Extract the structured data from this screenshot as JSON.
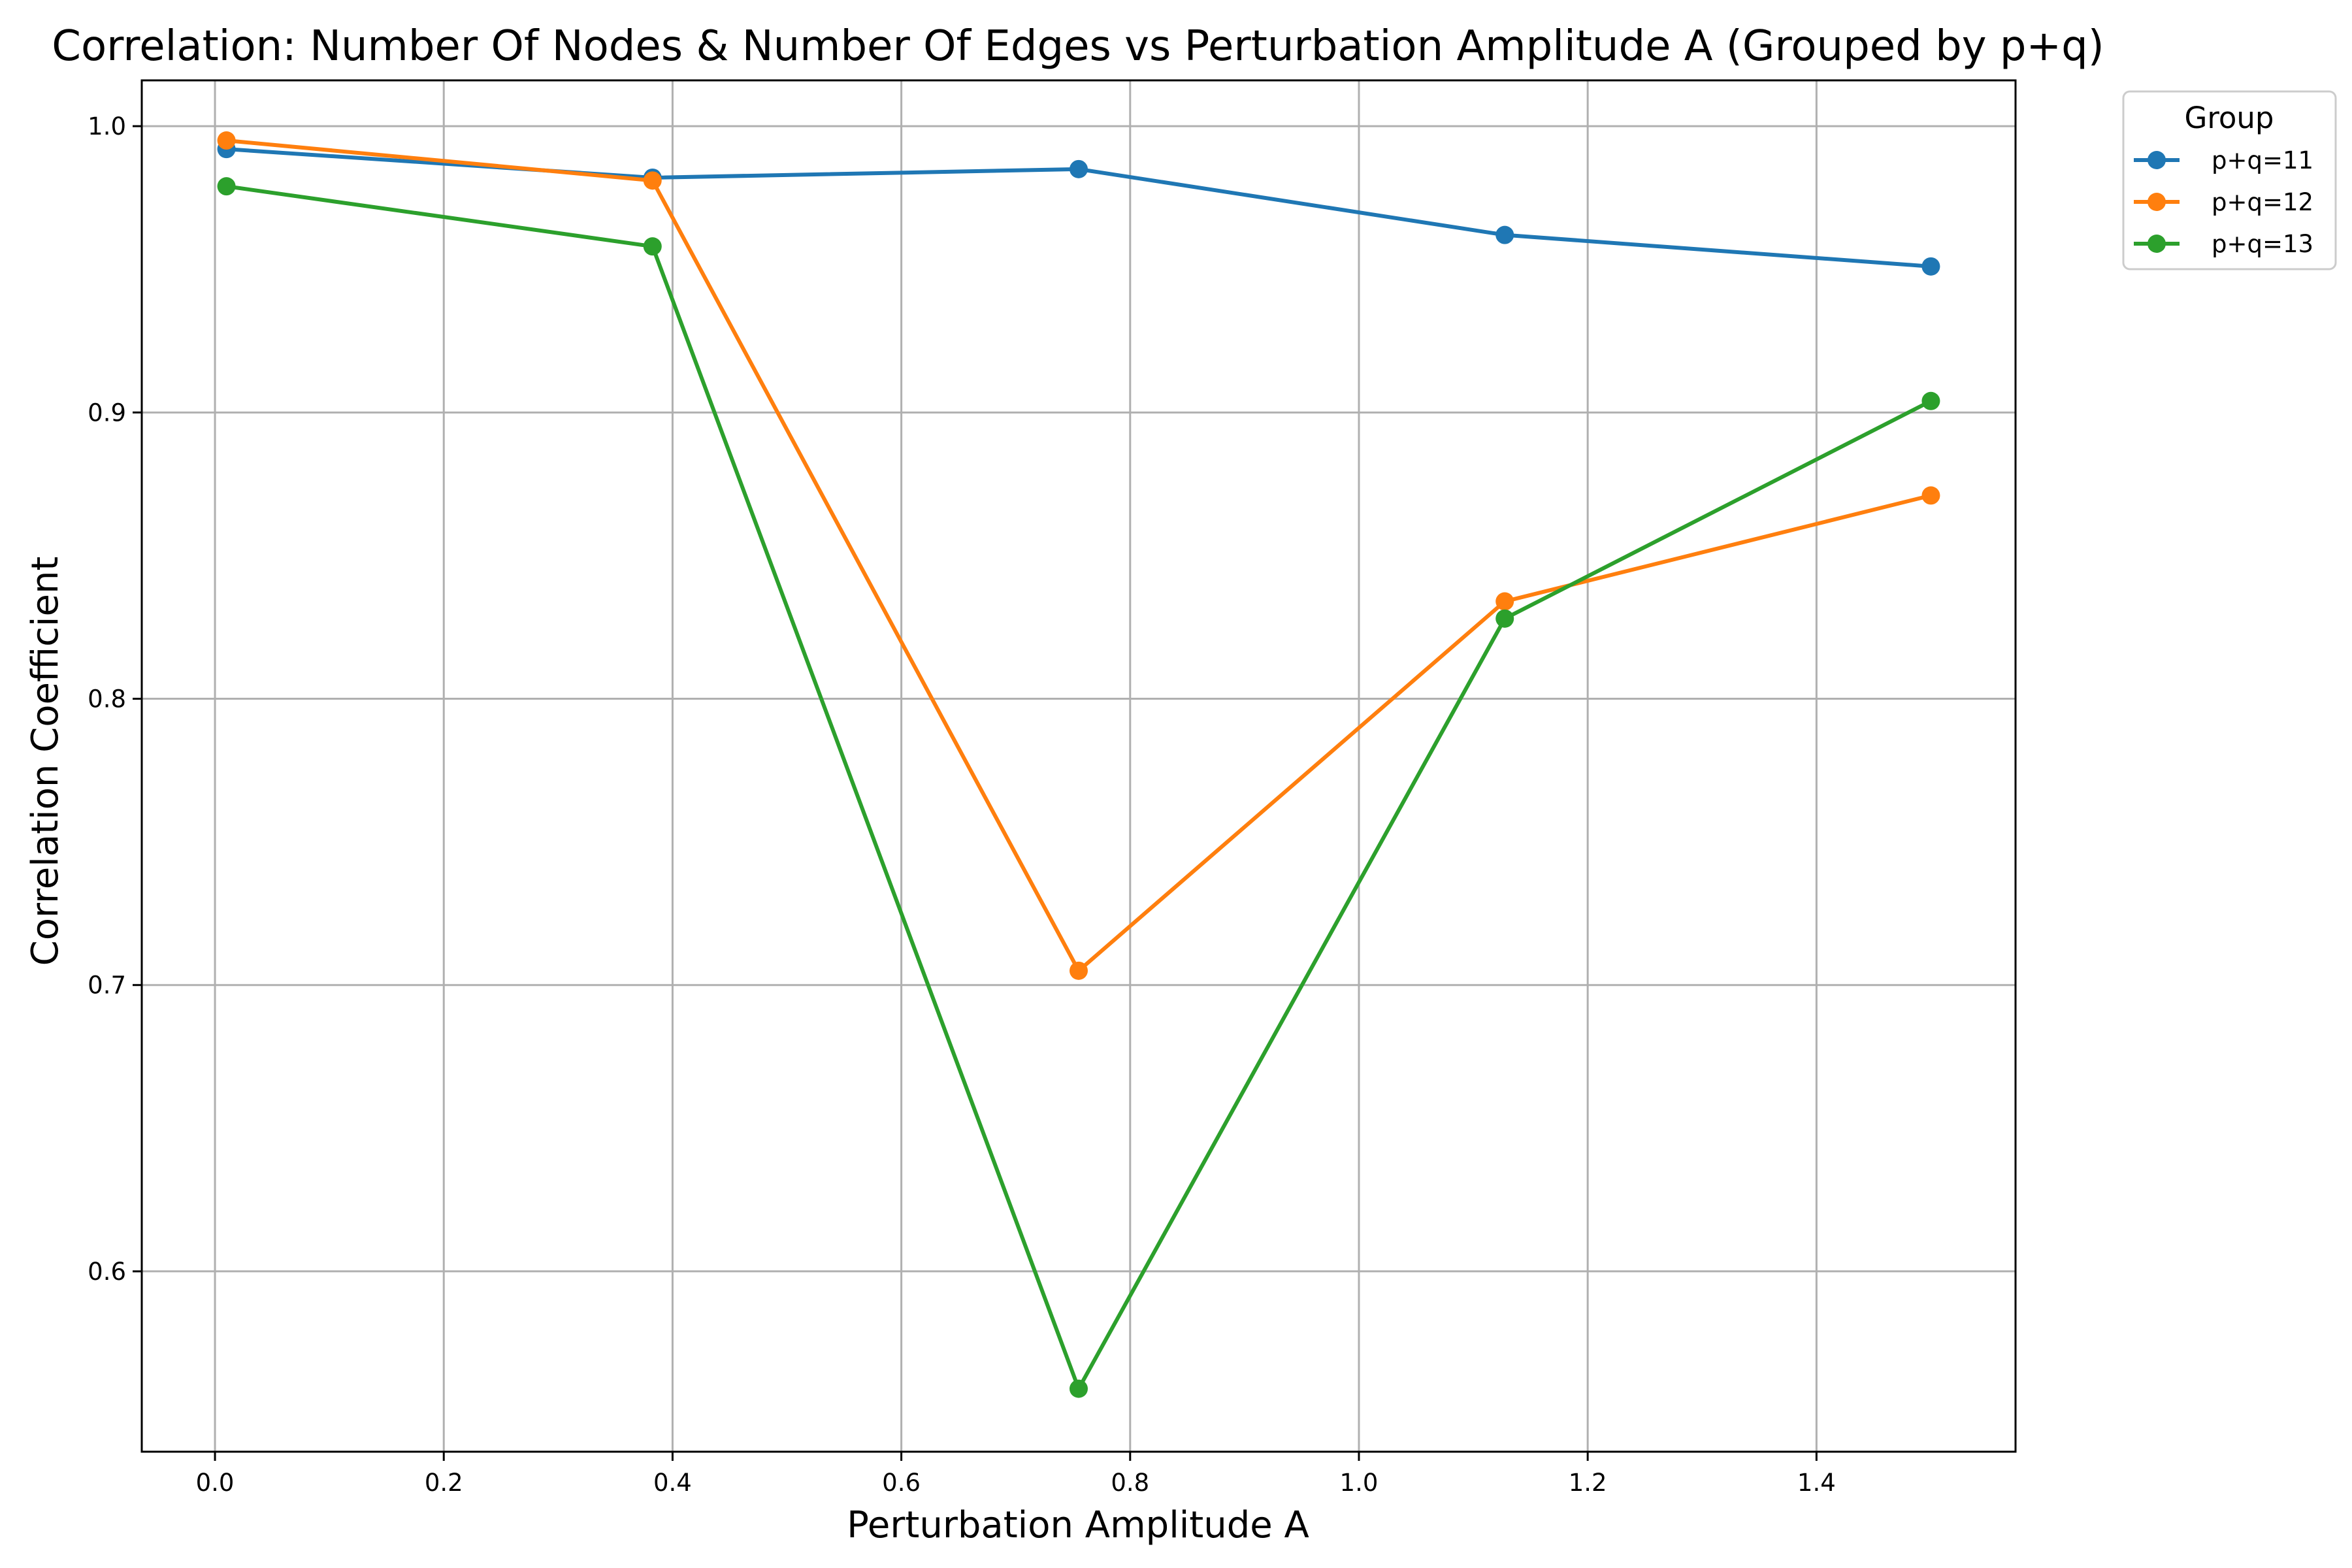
{
  "chart_data": {
    "type": "line",
    "title": "Correlation: Number Of Nodes & Number Of Edges vs Perturbation Amplitude A (Grouped by p+q)",
    "xlabel": "Perturbation Amplitude A",
    "ylabel": "Correlation Coefficient",
    "xlim": [
      -0.064,
      1.574
    ],
    "ylim": [
      0.537,
      1.016
    ],
    "xticks": [
      0.0,
      0.2,
      0.4,
      0.6,
      0.8,
      1.0,
      1.2,
      1.4
    ],
    "xtick_labels": [
      "0.0",
      "0.2",
      "0.4",
      "0.6",
      "0.8",
      "1.0",
      "1.2",
      "1.4"
    ],
    "yticks": [
      0.6,
      0.7,
      0.8,
      0.9,
      1.0
    ],
    "ytick_labels": [
      "0.6",
      "0.7",
      "0.8",
      "0.9",
      "1.0"
    ],
    "grid": true,
    "legend": {
      "title": "Group",
      "position": "outside-top-right"
    },
    "x": [
      0.01,
      0.3825,
      0.755,
      1.1275,
      1.5
    ],
    "series": [
      {
        "name": "p+q=11",
        "color": "#1f77b4",
        "marker": "circle",
        "values": [
          0.992,
          0.982,
          0.985,
          0.962,
          0.951
        ]
      },
      {
        "name": "p+q=12",
        "color": "#ff7f0e",
        "marker": "circle",
        "values": [
          0.995,
          0.981,
          0.705,
          0.834,
          0.871
        ]
      },
      {
        "name": "p+q=13",
        "color": "#2ca02c",
        "marker": "circle",
        "values": [
          0.979,
          0.958,
          0.559,
          0.828,
          0.904
        ]
      }
    ]
  }
}
